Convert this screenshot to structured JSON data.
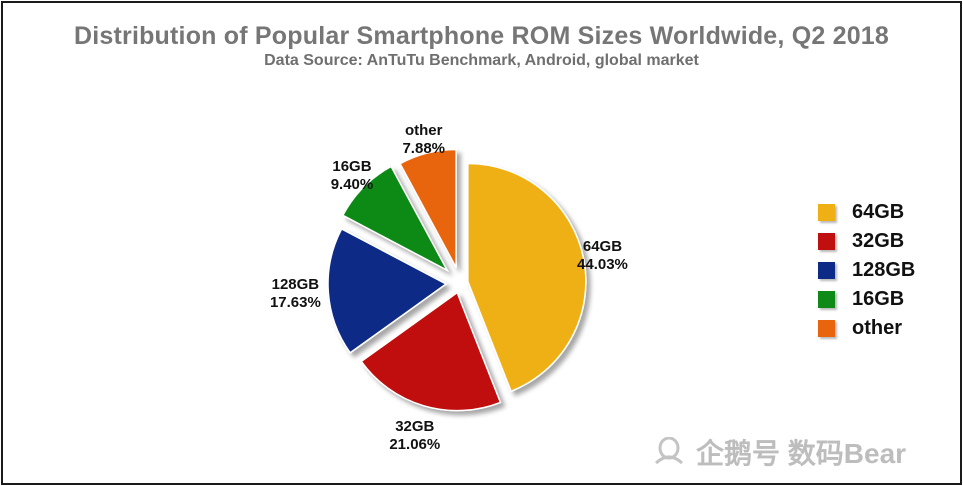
{
  "chart_data": {
    "type": "pie",
    "title": "Distribution of Popular Smartphone ROM Sizes Worldwide, Q2 2018",
    "subtitle": "Data Source: AnTuTu Benchmark, Android, global market",
    "slices": [
      {
        "name": "64GB",
        "value": 44.03,
        "label": "44.03%",
        "color": "#efb016"
      },
      {
        "name": "32GB",
        "value": 21.06,
        "label": "21.06%",
        "color": "#c00f0f"
      },
      {
        "name": "128GB",
        "value": 17.63,
        "label": "17.63%",
        "color": "#0d2a86"
      },
      {
        "name": "16GB",
        "value": 9.4,
        "label": "9.40%",
        "color": "#0f8a19"
      },
      {
        "name": "other",
        "value": 7.88,
        "label": "7.88%",
        "color": "#e8650e"
      }
    ],
    "legend": {
      "placement": "right"
    },
    "start_angle": "12 o'clock, clockwise",
    "exploded": true
  },
  "watermark": {
    "text": "企鹅号 数码Bear",
    "icon": "penguin-logo-icon"
  }
}
